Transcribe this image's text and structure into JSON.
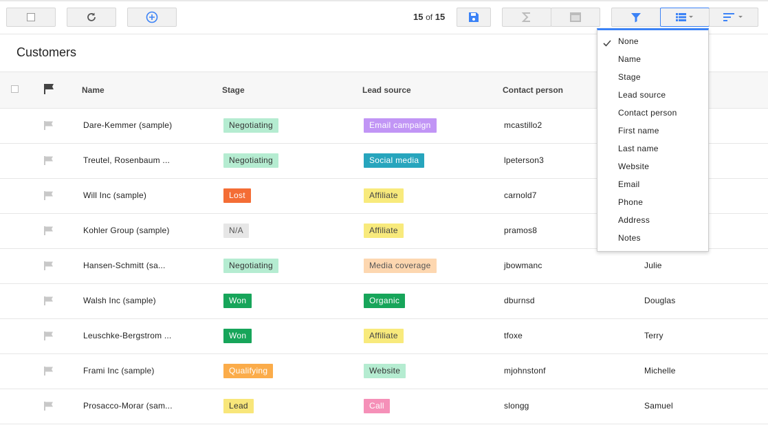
{
  "toolbar": {
    "record_position": "15",
    "record_of": "of",
    "record_total": "15"
  },
  "page": {
    "title": "Customers"
  },
  "table": {
    "columns": [
      "Name",
      "Stage",
      "Lead source",
      "Contact person"
    ],
    "rows": [
      {
        "name": "Dare-Kemmer (sample)",
        "stage": "Negotiating",
        "source": "Email campaign",
        "contact": "mcastillo2",
        "first": ""
      },
      {
        "name": "Treutel, Rosenbaum ...",
        "stage": "Negotiating",
        "source": "Social media",
        "contact": "lpeterson3",
        "first": ""
      },
      {
        "name": "Will Inc (sample)",
        "stage": "Lost",
        "source": "Affiliate",
        "contact": "carnold7",
        "first": ""
      },
      {
        "name": "Kohler Group (sample)",
        "stage": "N/A",
        "source": "Affiliate",
        "contact": "pramos8",
        "first": ""
      },
      {
        "name": "Hansen-Schmitt (sa...",
        "stage": "Negotiating",
        "source": "Media coverage",
        "contact": "jbowmanc",
        "first": "Julie"
      },
      {
        "name": "Walsh Inc (sample)",
        "stage": "Won",
        "source": "Organic",
        "contact": "dburnsd",
        "first": "Douglas"
      },
      {
        "name": "Leuschke-Bergstrom ...",
        "stage": "Won",
        "source": "Affiliate",
        "contact": "tfoxe",
        "first": "Terry"
      },
      {
        "name": "Frami Inc (sample)",
        "stage": "Qualifying",
        "source": "Website",
        "contact": "mjohnstonf",
        "first": "Michelle"
      },
      {
        "name": "Prosacco-Morar (sam...",
        "stage": "Lead",
        "source": "Call",
        "contact": "slongg",
        "first": "Samuel"
      }
    ]
  },
  "stage_colors": {
    "Negotiating": {
      "bg": "#b5ecd1",
      "fg": "#333333"
    },
    "Lost": {
      "bg": "#f46d35",
      "fg": "#ffffff"
    },
    "N/A": {
      "bg": "#e6e6e6",
      "fg": "#555555"
    },
    "Won": {
      "bg": "#17a55a",
      "fg": "#ffffff"
    },
    "Qualifying": {
      "bg": "#fbac4a",
      "fg": "#ffffff"
    },
    "Lead": {
      "bg": "#f8e67a",
      "fg": "#333333"
    }
  },
  "source_colors": {
    "Email campaign": {
      "bg": "#c195f5",
      "fg": "#ffffff"
    },
    "Social media": {
      "bg": "#27a5bd",
      "fg": "#ffffff"
    },
    "Affiliate": {
      "bg": "#f8ea7c",
      "fg": "#444444"
    },
    "Media coverage": {
      "bg": "#fdd7b0",
      "fg": "#555555"
    },
    "Organic": {
      "bg": "#17a55a",
      "fg": "#ffffff"
    },
    "Website": {
      "bg": "#b5ecd1",
      "fg": "#333333"
    },
    "Call": {
      "bg": "#f590b8",
      "fg": "#ffffff"
    }
  },
  "group_menu": {
    "selected": "None",
    "items": [
      "None",
      "Name",
      "Stage",
      "Lead source",
      "Contact person",
      "First name",
      "Last name",
      "Website",
      "Email",
      "Phone",
      "Address",
      "Notes"
    ]
  },
  "icons": [
    "select-all-icon",
    "refresh-icon",
    "add-icon",
    "save-icon",
    "sum-icon",
    "panel-icon",
    "filter-icon",
    "group-icon",
    "sort-icon",
    "flag-icon"
  ],
  "accent_color": "#3b82f6"
}
